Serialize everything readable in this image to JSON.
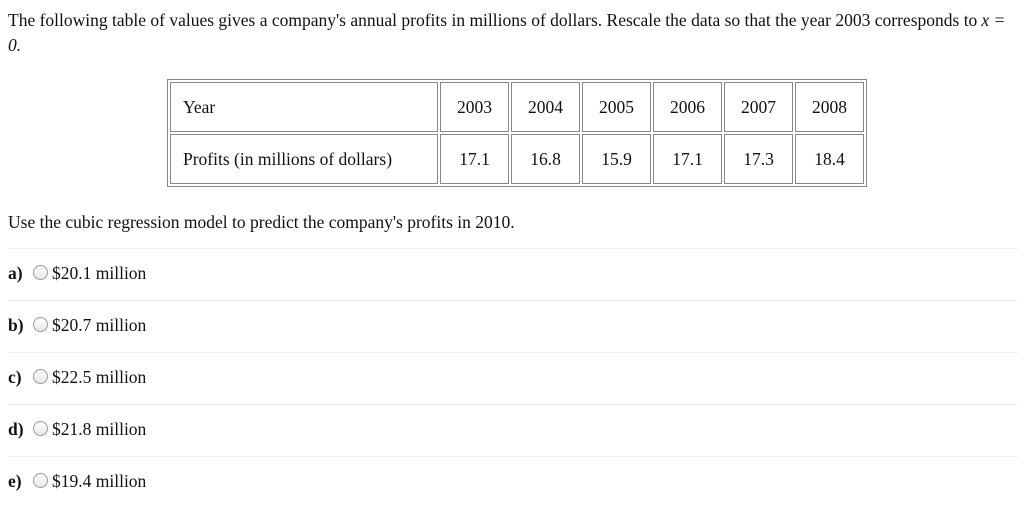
{
  "question": {
    "text": "The following table of values gives a company's annual profits in millions of dollars. Rescale the data so that the year 2003 corresponds to",
    "math": "x = 0."
  },
  "table": {
    "rows": [
      [
        "Year",
        2003,
        2004,
        2005,
        2006,
        2007,
        2008
      ],
      [
        "Profits (in millions of dollars)",
        17.1,
        16.8,
        15.9,
        17.1,
        17.3,
        18.4
      ]
    ]
  },
  "prompt": "Use the cubic regression model to predict the company's profits in 2010.",
  "options": [
    {
      "letter": "a)",
      "text": "$20.1 million"
    },
    {
      "letter": "b)",
      "text": "$20.7 million"
    },
    {
      "letter": "c)",
      "text": "$22.5 million"
    },
    {
      "letter": "d)",
      "text": "$21.8 million"
    },
    {
      "letter": "e)",
      "text": "$19.4 million"
    }
  ]
}
